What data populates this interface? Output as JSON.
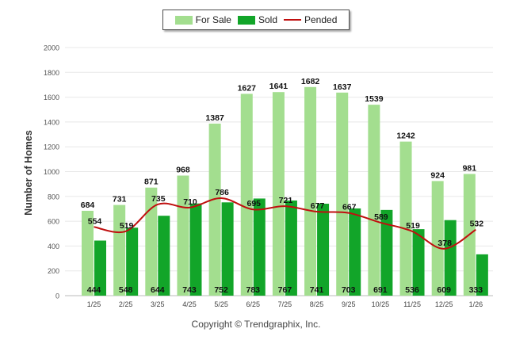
{
  "legend": {
    "for_sale": "For Sale",
    "sold": "Sold",
    "pended": "Pended"
  },
  "colors": {
    "for_sale": "#a3de8f",
    "sold": "#12a529",
    "pended": "#c00f0f",
    "grid": "#e8e8e8"
  },
  "ylabel": "Number of Homes",
  "copyright": "Copyright © Trendgraphix, Inc.",
  "chart_data": {
    "type": "bar",
    "categories": [
      "1/25",
      "2/25",
      "3/25",
      "4/25",
      "5/25",
      "6/25",
      "7/25",
      "8/25",
      "9/25",
      "10/25",
      "11/25",
      "12/25",
      "1/26"
    ],
    "series": [
      {
        "name": "For Sale",
        "type": "bar",
        "values": [
          684,
          731,
          871,
          968,
          1387,
          1627,
          1641,
          1682,
          1637,
          1539,
          1242,
          924,
          981
        ]
      },
      {
        "name": "Sold",
        "type": "bar",
        "values": [
          444,
          548,
          644,
          743,
          752,
          783,
          767,
          741,
          703,
          691,
          536,
          609,
          333
        ]
      },
      {
        "name": "Pended",
        "type": "line",
        "values": [
          554,
          519,
          735,
          710,
          786,
          695,
          721,
          677,
          667,
          589,
          519,
          378,
          532
        ]
      }
    ],
    "ylabel": "Number of Homes",
    "ylim": [
      0,
      2000
    ],
    "yticks": [
      0,
      200,
      400,
      600,
      800,
      1000,
      1200,
      1400,
      1600,
      1800,
      2000
    ],
    "grid": true,
    "legend_position": "top-center"
  }
}
